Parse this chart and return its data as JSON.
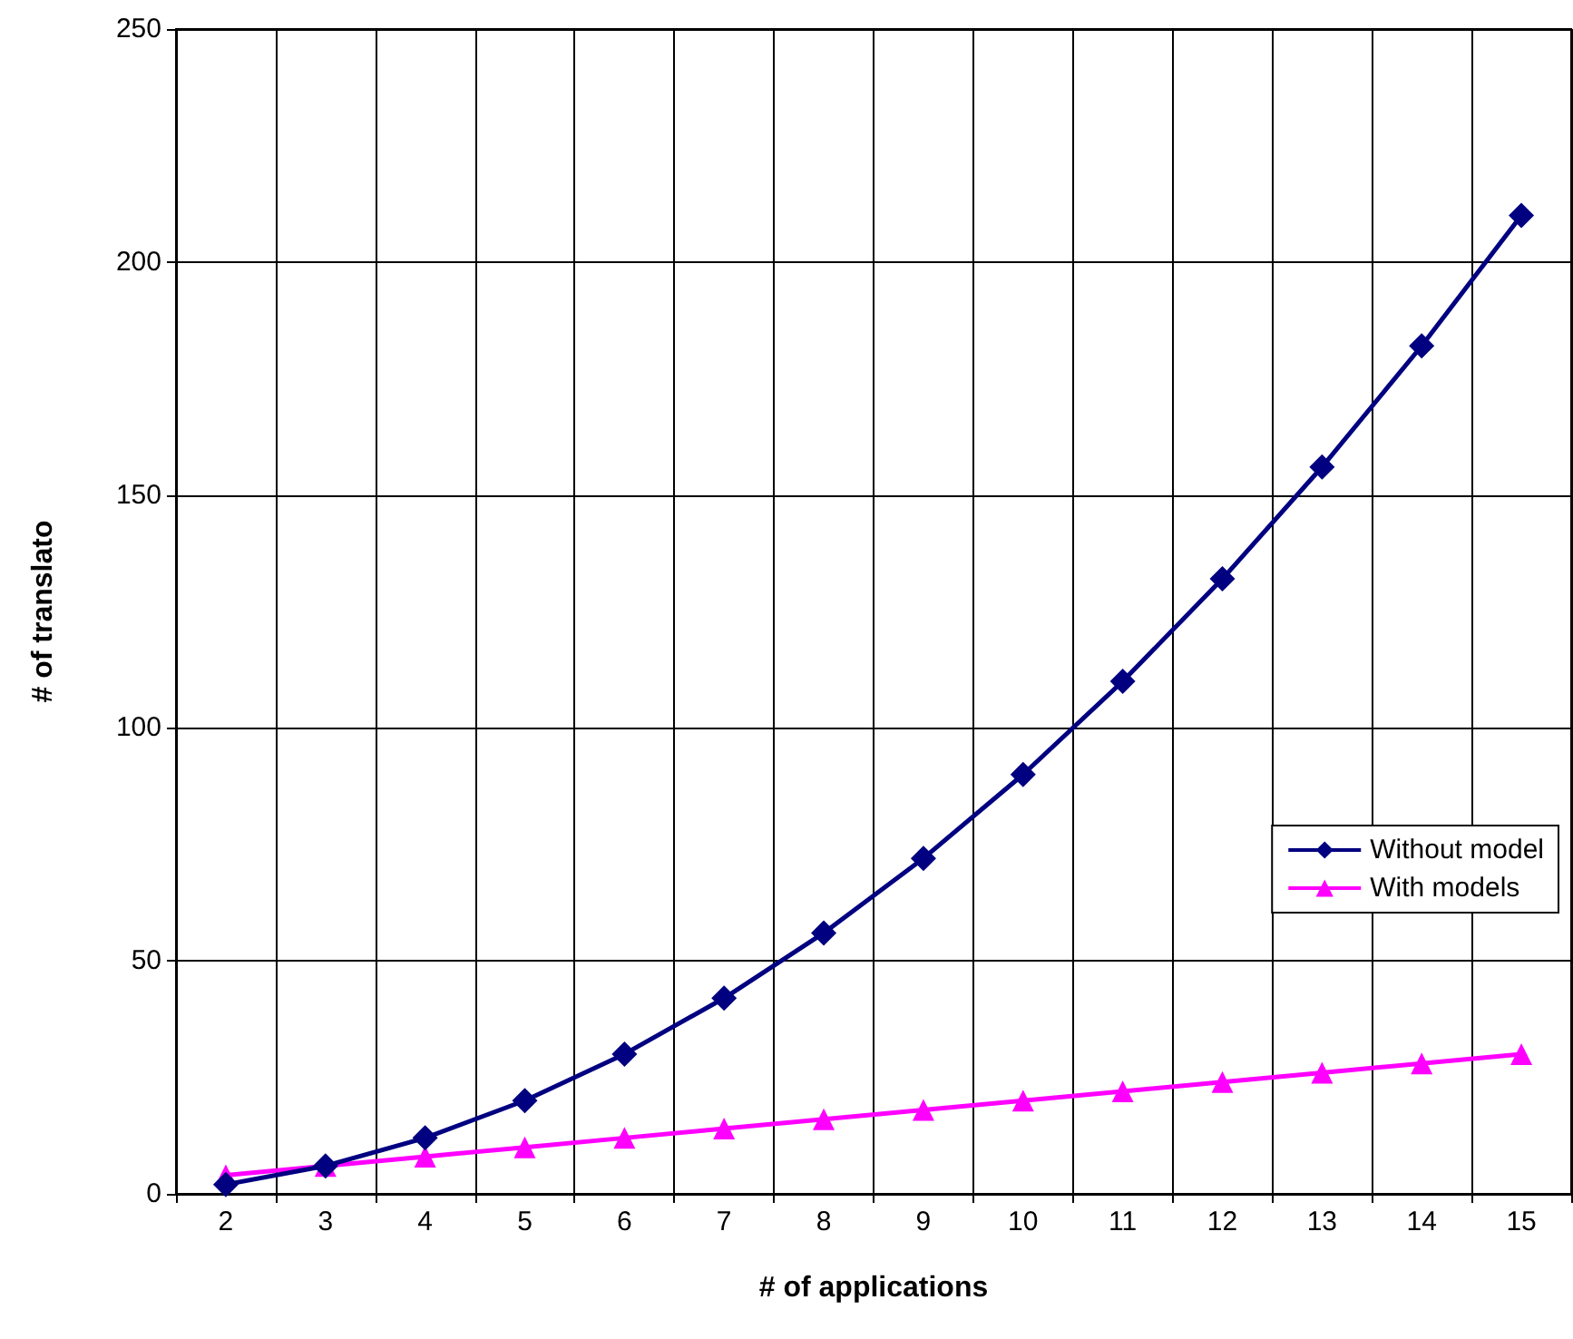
{
  "chart_data": {
    "type": "line",
    "xlabel": "# of applications",
    "ylabel": "# of translato",
    "categories": [
      "2",
      "3",
      "4",
      "5",
      "6",
      "7",
      "8",
      "9",
      "10",
      "11",
      "12",
      "13",
      "14",
      "15"
    ],
    "series": [
      {
        "name": "Without model",
        "color": "#000080",
        "marker": "diamond",
        "values": [
          2,
          6,
          12,
          20,
          30,
          42,
          56,
          72,
          90,
          110,
          132,
          156,
          182,
          210
        ]
      },
      {
        "name": "With models",
        "color": "#ff00ff",
        "marker": "triangle",
        "values": [
          4,
          6,
          8,
          10,
          12,
          14,
          16,
          18,
          20,
          22,
          24,
          26,
          28,
          30
        ]
      }
    ],
    "ylim": [
      0,
      250
    ],
    "yticks": [
      0,
      50,
      100,
      150,
      200,
      250
    ],
    "grid": true,
    "legend": "right",
    "line_style": "solid"
  }
}
